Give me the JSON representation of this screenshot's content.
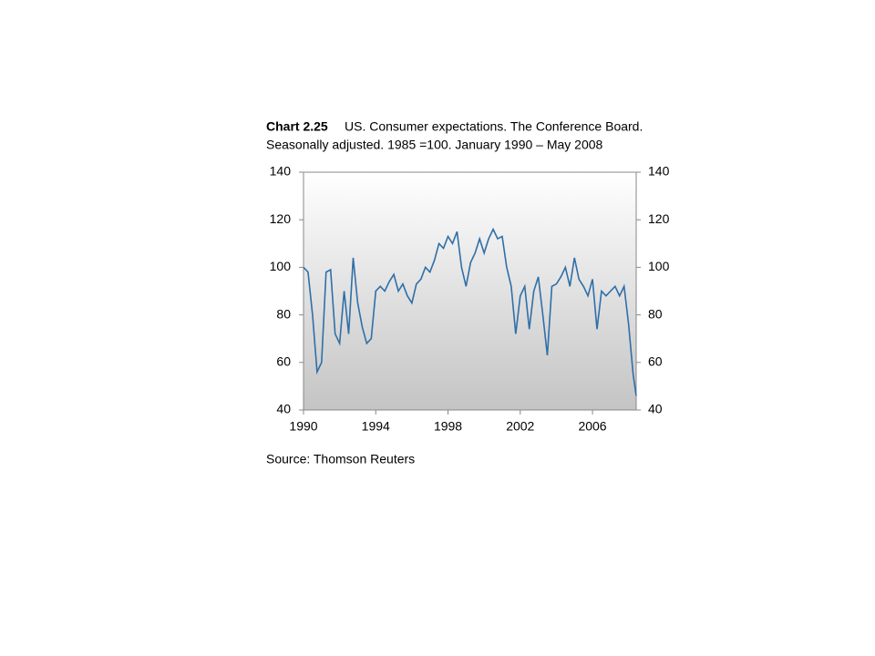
{
  "chart_data": {
    "type": "line",
    "title_label": "Chart 2.25",
    "title": "US. Consumer expectations. The Conference Board.",
    "subtitle": "Seasonally adjusted. 1985 =100. January 1990 – May 2008",
    "source": "Source: Thomson Reuters",
    "x": [
      1990,
      1990.25,
      1990.5,
      1990.75,
      1991,
      1991.25,
      1991.5,
      1991.75,
      1992,
      1992.25,
      1992.5,
      1992.75,
      1993,
      1993.25,
      1993.5,
      1993.75,
      1994,
      1994.25,
      1994.5,
      1994.75,
      1995,
      1995.25,
      1995.5,
      1995.75,
      1996,
      1996.25,
      1996.5,
      1996.75,
      1997,
      1997.25,
      1997.5,
      1997.75,
      1998,
      1998.25,
      1998.5,
      1998.75,
      1999,
      1999.25,
      1999.5,
      1999.75,
      2000,
      2000.25,
      2000.5,
      2000.75,
      2001,
      2001.25,
      2001.5,
      2001.75,
      2002,
      2002.25,
      2002.5,
      2002.75,
      2003,
      2003.25,
      2003.5,
      2003.75,
      2004,
      2004.25,
      2004.5,
      2004.75,
      2005,
      2005.25,
      2005.5,
      2005.75,
      2006,
      2006.25,
      2006.5,
      2006.75,
      2007,
      2007.25,
      2007.5,
      2007.75,
      2008,
      2008.25,
      2008.42
    ],
    "series": [
      {
        "name": "Consumer expectations",
        "color": "#2f6fa8",
        "values": [
          100,
          98,
          80,
          56,
          60,
          98,
          99,
          72,
          68,
          90,
          72,
          104,
          85,
          75,
          68,
          70,
          90,
          92,
          90,
          94,
          97,
          90,
          93,
          88,
          85,
          93,
          95,
          100,
          98,
          103,
          110,
          108,
          113,
          110,
          115,
          100,
          92,
          102,
          106,
          112,
          106,
          112,
          116,
          112,
          113,
          100,
          92,
          72,
          88,
          92,
          74,
          90,
          96,
          80,
          63,
          92,
          93,
          96,
          100,
          92,
          104,
          95,
          92,
          88,
          95,
          74,
          90,
          88,
          90,
          92,
          88,
          92,
          76,
          55,
          46
        ]
      }
    ],
    "xlim": [
      1990,
      2008.42
    ],
    "xticks": [
      1990,
      1994,
      1998,
      2002,
      2006
    ],
    "ylim": [
      40,
      140
    ],
    "yticks": [
      40,
      60,
      80,
      100,
      120,
      140
    ],
    "y2lim": [
      40,
      140
    ],
    "y2ticks": [
      40,
      60,
      80,
      100,
      120,
      140
    ]
  }
}
